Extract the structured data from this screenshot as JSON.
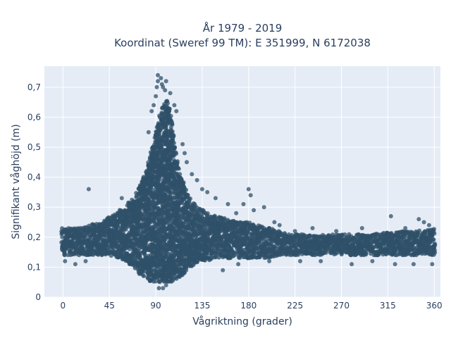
{
  "chart_data": {
    "type": "scatter",
    "title_line1": "År 1979 - 2019",
    "title_line2": "Koordinat (Sweref 99 TM): E 351999, N 6172038",
    "xlabel": "Vågriktning (grader)",
    "ylabel": "Signifikant våghöjd (m)",
    "xlim": [
      -18,
      366
    ],
    "ylim": [
      0,
      0.77
    ],
    "x_ticks": [
      0,
      45,
      90,
      135,
      180,
      225,
      270,
      315,
      360
    ],
    "x_tick_labels": [
      "0",
      "45",
      "90",
      "135",
      "180",
      "225",
      "270",
      "315",
      "360"
    ],
    "y_ticks": [
      0,
      0.1,
      0.2,
      0.3,
      0.4,
      0.5,
      0.6,
      0.7
    ],
    "y_tick_labels": [
      "0",
      "0,1",
      "0,2",
      "0,3",
      "0,4",
      "0,5",
      "0,6",
      "0,7"
    ],
    "grid": true,
    "marker_color": "#2f5068",
    "plot_bg": "#e5ecf6",
    "envelope": {
      "x": [
        -1,
        5,
        15,
        25,
        35,
        45,
        55,
        62,
        68,
        73,
        78,
        82,
        85,
        88,
        90,
        92,
        94,
        96,
        98,
        100,
        102,
        104,
        106,
        108,
        110,
        112,
        114,
        116,
        118,
        120,
        124,
        128,
        132,
        136,
        140,
        150,
        160,
        170,
        180,
        190,
        200,
        210,
        220,
        240,
        260,
        280,
        300,
        320,
        340,
        361
      ],
      "upper": [
        0.23,
        0.23,
        0.23,
        0.24,
        0.25,
        0.27,
        0.29,
        0.31,
        0.33,
        0.36,
        0.4,
        0.44,
        0.48,
        0.52,
        0.55,
        0.58,
        0.61,
        0.63,
        0.65,
        0.66,
        0.65,
        0.62,
        0.58,
        0.52,
        0.47,
        0.43,
        0.41,
        0.39,
        0.37,
        0.35,
        0.33,
        0.31,
        0.3,
        0.29,
        0.28,
        0.27,
        0.26,
        0.25,
        0.25,
        0.24,
        0.23,
        0.22,
        0.21,
        0.21,
        0.21,
        0.21,
        0.21,
        0.22,
        0.22,
        0.23
      ],
      "lower": [
        0.14,
        0.14,
        0.14,
        0.14,
        0.14,
        0.14,
        0.13,
        0.12,
        0.1,
        0.08,
        0.07,
        0.06,
        0.05,
        0.05,
        0.05,
        0.05,
        0.05,
        0.05,
        0.05,
        0.05,
        0.05,
        0.05,
        0.05,
        0.06,
        0.06,
        0.06,
        0.07,
        0.07,
        0.08,
        0.09,
        0.1,
        0.11,
        0.12,
        0.12,
        0.12,
        0.13,
        0.13,
        0.13,
        0.13,
        0.13,
        0.13,
        0.14,
        0.14,
        0.14,
        0.14,
        0.14,
        0.14,
        0.14,
        0.14,
        0.14
      ]
    },
    "outliers": [
      {
        "x": 25,
        "y": 0.36
      },
      {
        "x": 57,
        "y": 0.33
      },
      {
        "x": 83,
        "y": 0.55
      },
      {
        "x": 86,
        "y": 0.62
      },
      {
        "x": 88,
        "y": 0.64
      },
      {
        "x": 90,
        "y": 0.67
      },
      {
        "x": 91,
        "y": 0.7
      },
      {
        "x": 92,
        "y": 0.72
      },
      {
        "x": 92,
        "y": 0.74
      },
      {
        "x": 95,
        "y": 0.73
      },
      {
        "x": 96,
        "y": 0.71
      },
      {
        "x": 97,
        "y": 0.7
      },
      {
        "x": 99,
        "y": 0.69
      },
      {
        "x": 100,
        "y": 0.72
      },
      {
        "x": 104,
        "y": 0.68
      },
      {
        "x": 108,
        "y": 0.64
      },
      {
        "x": 110,
        "y": 0.62
      },
      {
        "x": 116,
        "y": 0.51
      },
      {
        "x": 118,
        "y": 0.48
      },
      {
        "x": 120,
        "y": 0.45
      },
      {
        "x": 125,
        "y": 0.41
      },
      {
        "x": 130,
        "y": 0.39
      },
      {
        "x": 135,
        "y": 0.36
      },
      {
        "x": 140,
        "y": 0.35
      },
      {
        "x": 148,
        "y": 0.33
      },
      {
        "x": 160,
        "y": 0.31
      },
      {
        "x": 168,
        "y": 0.28
      },
      {
        "x": 175,
        "y": 0.31
      },
      {
        "x": 180,
        "y": 0.36
      },
      {
        "x": 182,
        "y": 0.34
      },
      {
        "x": 185,
        "y": 0.29
      },
      {
        "x": 195,
        "y": 0.3
      },
      {
        "x": 205,
        "y": 0.25
      },
      {
        "x": 210,
        "y": 0.24
      },
      {
        "x": 225,
        "y": 0.22
      },
      {
        "x": 242,
        "y": 0.23
      },
      {
        "x": 265,
        "y": 0.22
      },
      {
        "x": 290,
        "y": 0.23
      },
      {
        "x": 318,
        "y": 0.27
      },
      {
        "x": 332,
        "y": 0.23
      },
      {
        "x": 345,
        "y": 0.26
      },
      {
        "x": 350,
        "y": 0.25
      },
      {
        "x": 355,
        "y": 0.24
      },
      {
        "x": 93,
        "y": 0.03
      },
      {
        "x": 97,
        "y": 0.03
      },
      {
        "x": 100,
        "y": 0.04
      },
      {
        "x": 2,
        "y": 0.12
      },
      {
        "x": 12,
        "y": 0.11
      },
      {
        "x": 22,
        "y": 0.12
      },
      {
        "x": 155,
        "y": 0.09
      },
      {
        "x": 170,
        "y": 0.11
      },
      {
        "x": 200,
        "y": 0.12
      },
      {
        "x": 230,
        "y": 0.12
      },
      {
        "x": 250,
        "y": 0.12
      },
      {
        "x": 280,
        "y": 0.11
      },
      {
        "x": 300,
        "y": 0.12
      },
      {
        "x": 322,
        "y": 0.11
      },
      {
        "x": 340,
        "y": 0.11
      },
      {
        "x": 358,
        "y": 0.11
      }
    ]
  }
}
